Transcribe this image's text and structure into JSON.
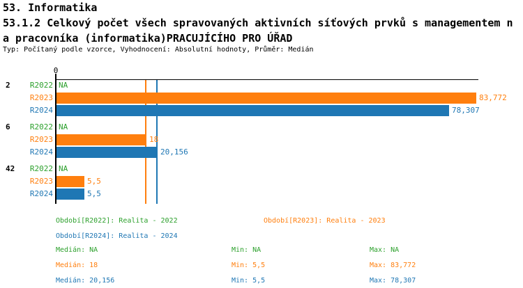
{
  "header": {
    "title": "53. Informatika",
    "subtitle_line1": "53.1.2 Celkový počet všech spravovaných aktivních síťových prvků s managementem n",
    "subtitle_line2": "a pracovníka (informatika)PRACUJÍCÍHO PRO ÚŘAD",
    "meta": "Typ: Počítaný podle vzorce, Vyhodnocení: Absolutní hodnoty, Průměr: Medián"
  },
  "colors": {
    "r2022_green": "#2ca02c",
    "r2023_orange": "#ff7f0e",
    "r2024_blue": "#1f77b4",
    "axis": "#000000",
    "background": "#ffffff"
  },
  "chart_data": {
    "type": "bar",
    "orientation": "horizontal",
    "title": "",
    "xlabel": "",
    "ylabel": "",
    "xlim": [
      0,
      84.3
    ],
    "grid": false,
    "axis_tick_labels": [
      "0"
    ],
    "series_names": [
      "R2022",
      "R2023",
      "R2024"
    ],
    "series_colors": {
      "R2022": "#2ca02c",
      "R2023": "#ff7f0e",
      "R2024": "#1f77b4"
    },
    "groups": [
      {
        "category": "2",
        "bars": [
          {
            "series": "R2022",
            "value": null,
            "label": "NA"
          },
          {
            "series": "R2023",
            "value": 83.772,
            "label": "83,772"
          },
          {
            "series": "R2024",
            "value": 78.307,
            "label": "78,307"
          }
        ]
      },
      {
        "category": "6",
        "bars": [
          {
            "series": "R2022",
            "value": null,
            "label": "NA"
          },
          {
            "series": "R2023",
            "value": 18,
            "label": "18"
          },
          {
            "series": "R2024",
            "value": 20.156,
            "label": "20,156"
          }
        ]
      },
      {
        "category": "42",
        "bars": [
          {
            "series": "R2022",
            "value": null,
            "label": "NA"
          },
          {
            "series": "R2023",
            "value": 5.5,
            "label": "5,5"
          },
          {
            "series": "R2024",
            "value": 5.5,
            "label": "5,5"
          }
        ]
      }
    ],
    "median_lines": [
      {
        "series": "R2023",
        "value": 18
      },
      {
        "series": "R2024",
        "value": 20.156
      }
    ]
  },
  "legend": {
    "items": [
      {
        "id": "R2022",
        "text": "Období[R2022]: Realita - 2022"
      },
      {
        "id": "R2023",
        "text": "Období[R2023]: Realita - 2023"
      },
      {
        "id": "R2024",
        "text": "Období[R2024]: Realita - 2024"
      }
    ]
  },
  "stats": {
    "rows": [
      {
        "series": "R2022",
        "median": "Medián: NA",
        "min": "Min: NA",
        "max": "Max: NA"
      },
      {
        "series": "R2023",
        "median": "Medián: 18",
        "min": "Min: 5,5",
        "max": "Max: 83,772"
      },
      {
        "series": "R2024",
        "median": "Medián: 20,156",
        "min": "Min: 5,5",
        "max": "Max: 78,307"
      }
    ]
  }
}
